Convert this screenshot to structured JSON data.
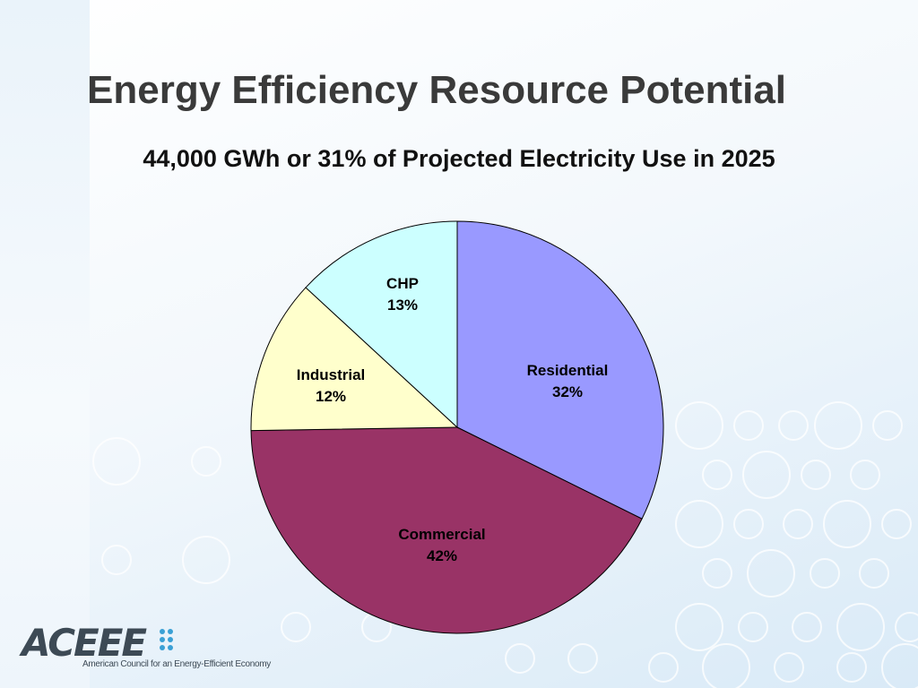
{
  "slide": {
    "title": "Energy Efficiency Resource Potential",
    "subtitle": "44,000 GWh or 31% of Projected Electricity Use in 2025"
  },
  "chart_data": {
    "type": "pie",
    "slices": [
      {
        "label": "Residential",
        "value": 32,
        "value_label": "32%",
        "color": "#9999ff"
      },
      {
        "label": "Commercial",
        "value": 42,
        "value_label": "42%",
        "color": "#993366"
      },
      {
        "label": "Industrial",
        "value": 12,
        "value_label": "12%",
        "color": "#ffffcc"
      },
      {
        "label": "CHP",
        "value": 13,
        "value_label": "13%",
        "color": "#ccffff"
      }
    ],
    "start": "12 o'clock",
    "direction": "clockwise"
  },
  "logo": {
    "wordmark": "ACEEE",
    "tagline": "American Council for an Energy-Efficient Economy",
    "accent_color": "#3aa0d5"
  }
}
